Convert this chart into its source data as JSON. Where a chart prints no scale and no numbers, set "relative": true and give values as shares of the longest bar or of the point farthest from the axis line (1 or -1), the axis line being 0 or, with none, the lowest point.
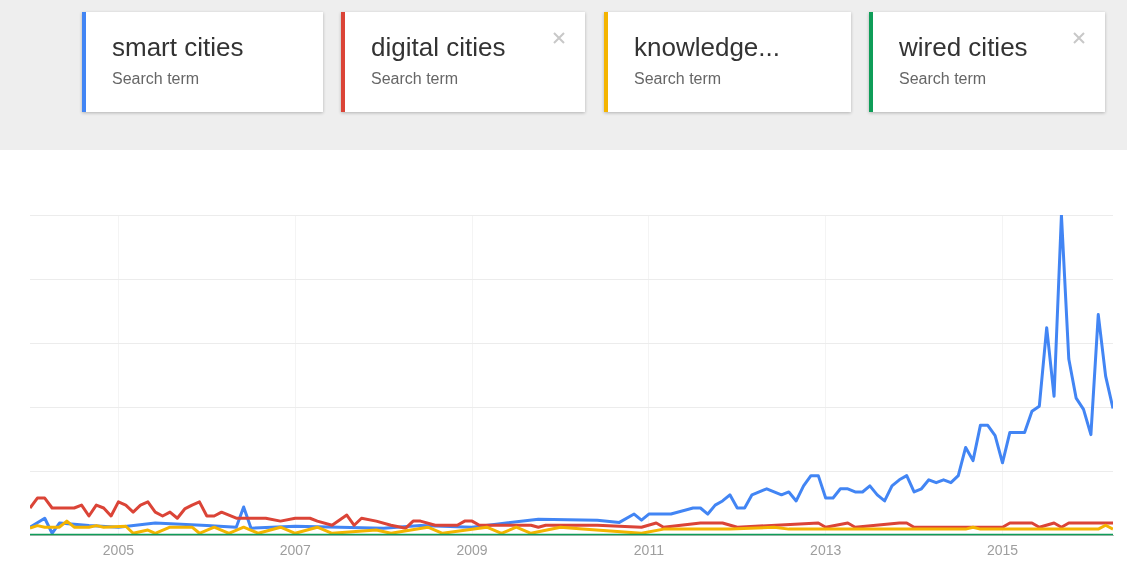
{
  "chart_data": {
    "type": "line",
    "relative": true,
    "legend": "top",
    "legend_title": "Search term",
    "grid": true,
    "marker": "none",
    "line_style": "solid",
    "xlim": [
      "2004-01",
      "2016-04"
    ],
    "xticks": [
      "2005",
      "2007",
      "2009",
      "2011",
      "2013",
      "2015"
    ],
    "series": [
      {
        "name": "smart cities",
        "color": "#4285f4",
        "x": [
          "2004-01",
          "2004-03",
          "2004-04",
          "2004-05",
          "2004-09",
          "2005-01",
          "2005-06",
          "2006-01",
          "2006-05",
          "2006-06",
          "2006-07",
          "2007-01",
          "2008-01",
          "2008-06",
          "2009-01",
          "2009-10",
          "2010-06",
          "2010-09",
          "2010-11",
          "2010-12",
          "2011-01",
          "2011-04",
          "2011-07",
          "2011-08",
          "2011-09",
          "2011-10",
          "2011-11",
          "2011-12",
          "2012-01",
          "2012-02",
          "2012-03",
          "2012-05",
          "2012-07",
          "2012-08",
          "2012-09",
          "2012-10",
          "2012-11",
          "2012-12",
          "2013-01",
          "2013-02",
          "2013-03",
          "2013-04",
          "2013-05",
          "2013-06",
          "2013-07",
          "2013-08",
          "2013-09",
          "2013-10",
          "2013-11",
          "2013-12",
          "2014-01",
          "2014-02",
          "2014-03",
          "2014-04",
          "2014-05",
          "2014-06",
          "2014-07",
          "2014-08",
          "2014-09",
          "2014-10",
          "2014-11",
          "2014-12",
          "2015-01",
          "2015-02",
          "2015-03",
          "2015-04",
          "2015-05",
          "2015-06",
          "2015-07",
          "2015-08",
          "2015-09",
          "2015-10",
          "2015-11",
          "2015-12",
          "2016-01",
          "2016-02",
          "2016-03",
          "2016-04"
        ],
        "values": [
          0.025,
          0.053,
          0.006,
          0.038,
          0.03,
          0.025,
          0.038,
          0.03,
          0.025,
          0.088,
          0.022,
          0.028,
          0.022,
          0.03,
          0.025,
          0.05,
          0.047,
          0.04,
          0.066,
          0.047,
          0.066,
          0.066,
          0.085,
          0.085,
          0.066,
          0.094,
          0.107,
          0.126,
          0.085,
          0.085,
          0.126,
          0.145,
          0.126,
          0.135,
          0.107,
          0.154,
          0.186,
          0.186,
          0.116,
          0.116,
          0.145,
          0.145,
          0.135,
          0.135,
          0.154,
          0.126,
          0.107,
          0.154,
          0.173,
          0.186,
          0.135,
          0.145,
          0.173,
          0.164,
          0.173,
          0.164,
          0.186,
          0.274,
          0.233,
          0.343,
          0.343,
          0.311,
          0.226,
          0.321,
          0.321,
          0.321,
          0.387,
          0.403,
          0.648,
          0.434,
          1.0,
          0.55,
          0.428,
          0.393,
          0.314,
          0.689,
          0.497,
          0.396
        ]
      },
      {
        "name": "digital cities",
        "color": "#db4437",
        "x": [
          "2004-01",
          "2004-02",
          "2004-03",
          "2004-04",
          "2004-07",
          "2004-08",
          "2004-09",
          "2004-10",
          "2004-11",
          "2004-12",
          "2005-01",
          "2005-02",
          "2005-03",
          "2005-04",
          "2005-05",
          "2005-06",
          "2005-07",
          "2005-08",
          "2005-09",
          "2005-10",
          "2005-11",
          "2005-12",
          "2006-01",
          "2006-02",
          "2006-03",
          "2006-05",
          "2006-07",
          "2006-09",
          "2006-11",
          "2007-01",
          "2007-03",
          "2007-04",
          "2007-06",
          "2007-08",
          "2007-09",
          "2007-10",
          "2007-12",
          "2008-02",
          "2008-04",
          "2008-05",
          "2008-06",
          "2008-08",
          "2008-11",
          "2008-12",
          "2009-01",
          "2009-02",
          "2009-09",
          "2009-10",
          "2009-11",
          "2010-06",
          "2010-12",
          "2011-02",
          "2011-03",
          "2011-08",
          "2011-11",
          "2012-01",
          "2012-12",
          "2013-01",
          "2013-04",
          "2013-05",
          "2013-11",
          "2013-12",
          "2014-01",
          "2015-01",
          "2015-02",
          "2015-05",
          "2015-06",
          "2015-08",
          "2015-09",
          "2015-10",
          "2016-04"
        ],
        "values": [
          0.085,
          0.116,
          0.116,
          0.085,
          0.085,
          0.094,
          0.06,
          0.094,
          0.085,
          0.06,
          0.104,
          0.094,
          0.072,
          0.094,
          0.104,
          0.072,
          0.06,
          0.072,
          0.053,
          0.082,
          0.094,
          0.104,
          0.06,
          0.06,
          0.072,
          0.053,
          0.053,
          0.053,
          0.044,
          0.053,
          0.053,
          0.044,
          0.031,
          0.063,
          0.031,
          0.053,
          0.044,
          0.031,
          0.022,
          0.044,
          0.044,
          0.031,
          0.031,
          0.044,
          0.044,
          0.031,
          0.031,
          0.025,
          0.031,
          0.031,
          0.025,
          0.038,
          0.025,
          0.038,
          0.038,
          0.025,
          0.038,
          0.025,
          0.038,
          0.025,
          0.038,
          0.038,
          0.025,
          0.025,
          0.038,
          0.038,
          0.025,
          0.038,
          0.025,
          0.038,
          0.038
        ]
      },
      {
        "name": "knowledge...",
        "color": "#f4b400",
        "x": [
          "2004-01",
          "2004-02",
          "2004-03",
          "2004-05",
          "2004-06",
          "2004-07",
          "2004-09",
          "2004-10",
          "2004-11",
          "2005-02",
          "2005-03",
          "2005-05",
          "2005-06",
          "2005-08",
          "2005-11",
          "2005-12",
          "2006-02",
          "2006-04",
          "2006-06",
          "2006-08",
          "2006-11",
          "2007-01",
          "2007-04",
          "2007-06",
          "2007-12",
          "2008-02",
          "2008-07",
          "2008-09",
          "2009-03",
          "2009-05",
          "2009-07",
          "2009-09",
          "2010-01",
          "2010-04",
          "2010-12",
          "2011-03",
          "2011-12",
          "2012-06",
          "2012-08",
          "2014-08",
          "2014-09",
          "2014-10",
          "2016-02",
          "2016-03",
          "2016-04"
        ],
        "values": [
          0.022,
          0.03,
          0.025,
          0.025,
          0.044,
          0.025,
          0.025,
          0.03,
          0.025,
          0.028,
          0.006,
          0.016,
          0.006,
          0.025,
          0.025,
          0.006,
          0.025,
          0.006,
          0.025,
          0.006,
          0.025,
          0.006,
          0.025,
          0.006,
          0.016,
          0.006,
          0.025,
          0.006,
          0.025,
          0.006,
          0.025,
          0.006,
          0.025,
          0.019,
          0.006,
          0.019,
          0.019,
          0.025,
          0.019,
          0.019,
          0.025,
          0.019,
          0.019,
          0.031,
          0.019
        ]
      },
      {
        "name": "wired cities",
        "color": "#0f9d58",
        "x": [
          "2004-01",
          "2010-01",
          "2016-04"
        ],
        "values": [
          0,
          0,
          0
        ]
      }
    ]
  }
}
